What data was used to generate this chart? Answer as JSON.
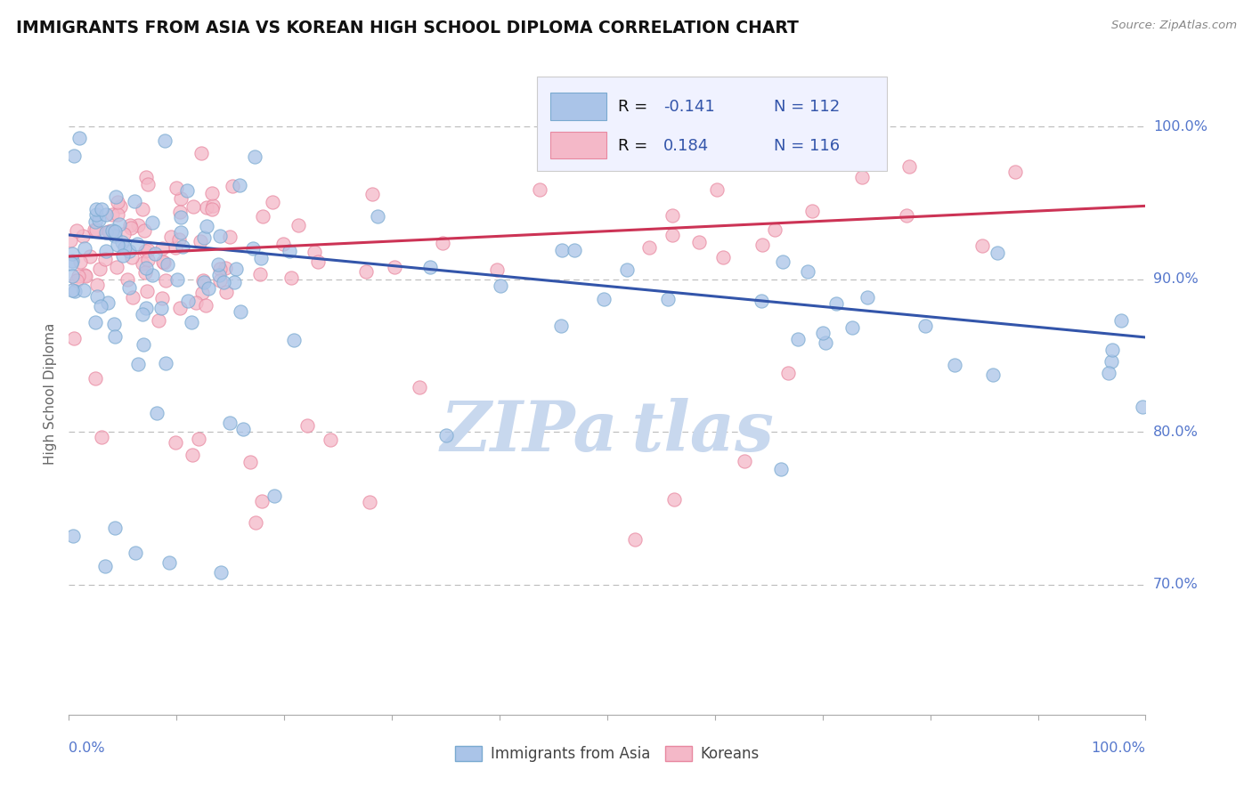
{
  "title": "IMMIGRANTS FROM ASIA VS KOREAN HIGH SCHOOL DIPLOMA CORRELATION CHART",
  "source_text": "Source: ZipAtlas.com",
  "ylabel": "High School Diploma",
  "xlim": [
    0.0,
    1.0
  ],
  "ylim": [
    0.615,
    1.035
  ],
  "yticks": [
    0.7,
    0.8,
    0.9,
    1.0
  ],
  "ytick_labels": [
    "70.0%",
    "80.0%",
    "90.0%",
    "100.0%"
  ],
  "legend_r1_pre": "R = ",
  "legend_r1_val": "-0.141",
  "legend_n1": "N = 112",
  "legend_r2_pre": "R =  ",
  "legend_r2_val": "0.184",
  "legend_n2": "N = 116",
  "blue_scatter_color": "#aac4e8",
  "pink_scatter_color": "#f4b8c8",
  "blue_edge_color": "#7aaad0",
  "pink_edge_color": "#e888a0",
  "trend_blue": "#3355aa",
  "trend_pink": "#cc3355",
  "grid_color": "#bbbbbb",
  "title_color": "#111111",
  "axis_label_color": "#5577cc",
  "watermark_color": "#c8d8ee",
  "legend_text_color": "#111111",
  "legend_val_color": "#5577cc",
  "source_color": "#888888"
}
